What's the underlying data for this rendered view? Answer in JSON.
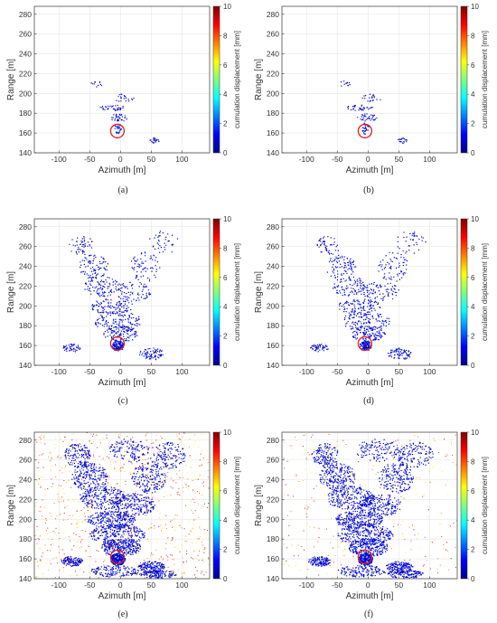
{
  "figure": {
    "panels": [
      {
        "caption": "(a)",
        "variant": "sparse",
        "noise": 0.0
      },
      {
        "caption": "(b)",
        "variant": "sparse",
        "noise": 0.0
      },
      {
        "caption": "(c)",
        "variant": "medium",
        "noise": 0.0
      },
      {
        "caption": "(d)",
        "variant": "medium",
        "noise": 0.0
      },
      {
        "caption": "(e)",
        "variant": "dense",
        "noise": 1.0
      },
      {
        "caption": "(f)",
        "variant": "dense",
        "noise": 0.35
      }
    ]
  },
  "chart_data": {
    "type": "scatter",
    "xlabel": "Azimuth [m]",
    "ylabel": "Range [m]",
    "colorbar_label": "cumulation displacement [mm]",
    "x_ticks": [
      -100,
      -50,
      0,
      50,
      100
    ],
    "y_ticks": [
      140,
      160,
      180,
      200,
      220,
      240,
      260,
      280
    ],
    "colorbar_ticks": [
      0,
      2,
      4,
      6,
      8,
      10
    ],
    "xlim": [
      -140,
      145
    ],
    "ylim": [
      140,
      288
    ],
    "clim": [
      0,
      10
    ],
    "colormap": "jet",
    "grid": true,
    "marker_circle": {
      "x": -5,
      "y": 162,
      "color": "#e02020"
    }
  }
}
